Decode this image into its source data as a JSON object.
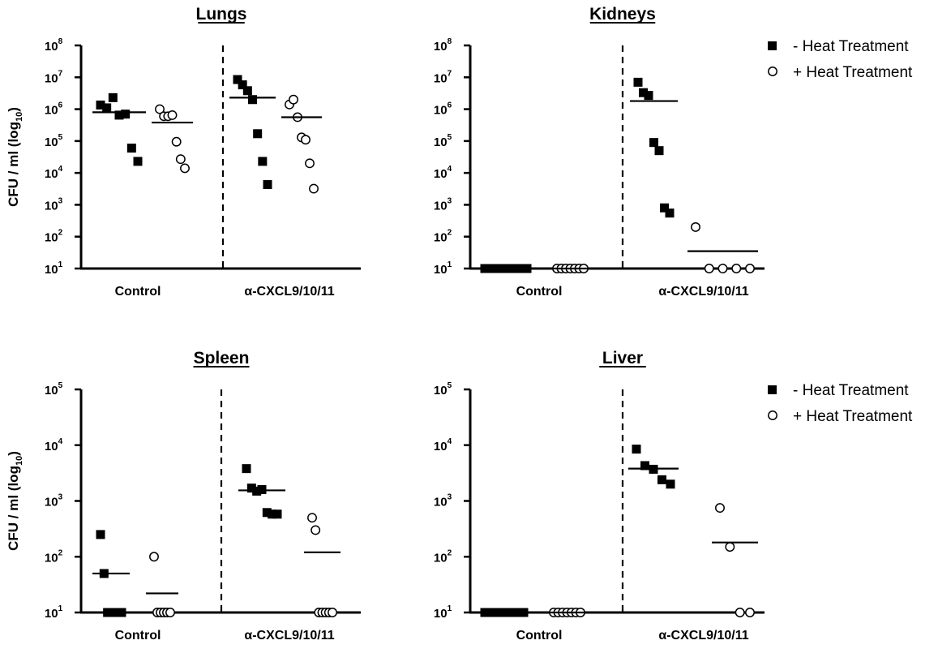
{
  "figure": {
    "ylabel": "CFU / ml (log",
    "ylabel_sub": "10",
    "ylabel_close": ")",
    "legend": {
      "filled": "-  Heat Treatment",
      "open": "+ Heat Treatment"
    }
  },
  "chart_data": [
    {
      "id": "lungs",
      "type": "scatter",
      "title": "Lungs",
      "yscale": "log",
      "ylim_exp": [
        1,
        8
      ],
      "tick_base": "10",
      "ytick_exps": [
        "1",
        "2",
        "3",
        "4",
        "5",
        "6",
        "7",
        "8"
      ],
      "categories": [
        "Control",
        "α-CXCL9/10/11"
      ],
      "legend": "none",
      "series": [
        {
          "marker": "filled-square",
          "category": 0,
          "values": [
            1350000,
            1100000,
            2300000,
            650000,
            700000,
            60000,
            23000
          ],
          "mean": 800000
        },
        {
          "marker": "open-circle",
          "category": 0,
          "values": [
            1000000,
            600000,
            600000,
            650000,
            95000,
            27000,
            14000
          ],
          "mean": 380000
        },
        {
          "marker": "filled-square",
          "category": 1,
          "values": [
            8500000,
            5800000,
            3800000,
            2000000,
            170000,
            23000,
            4300
          ],
          "mean": 2300000
        },
        {
          "marker": "open-circle",
          "category": 1,
          "values": [
            1400000,
            2000000,
            560000,
            130000,
            110000,
            20000,
            3200
          ],
          "mean": 560000
        }
      ]
    },
    {
      "id": "kidneys",
      "type": "scatter",
      "title": "Kidneys",
      "yscale": "log",
      "ylim_exp": [
        1,
        8
      ],
      "tick_base": "10",
      "ytick_exps": [
        "1",
        "2",
        "3",
        "4",
        "5",
        "6",
        "7",
        "8"
      ],
      "categories": [
        "Control",
        "α-CXCL9/10/11"
      ],
      "legend": "top-right",
      "series": [
        {
          "marker": "filled-square",
          "category": 0,
          "values": [
            10,
            10,
            10,
            10,
            10,
            10,
            10
          ],
          "mean": 10
        },
        {
          "marker": "open-circle",
          "category": 0,
          "values": [
            10,
            10,
            10,
            10,
            10,
            10,
            10
          ],
          "mean": 10
        },
        {
          "marker": "filled-square",
          "category": 1,
          "values": [
            7000000,
            3300000,
            2700000,
            90000,
            50000,
            800,
            550
          ],
          "mean": 1800000
        },
        {
          "marker": "open-circle",
          "category": 1,
          "values": [
            200,
            10,
            10,
            10,
            10
          ],
          "mean": 35
        }
      ]
    },
    {
      "id": "spleen",
      "type": "scatter",
      "title": "Spleen",
      "yscale": "log",
      "ylim_exp": [
        1,
        5
      ],
      "tick_base": "10",
      "ytick_exps": [
        "1",
        "2",
        "3",
        "4",
        "5"
      ],
      "categories": [
        "Control",
        "α-CXCL9/10/11"
      ],
      "legend": "none",
      "series": [
        {
          "marker": "filled-square",
          "category": 0,
          "values": [
            250,
            50,
            10,
            10,
            10,
            10,
            10
          ],
          "mean": 50
        },
        {
          "marker": "open-circle",
          "category": 0,
          "values": [
            100,
            10,
            10,
            10,
            10,
            10
          ],
          "mean": 22
        },
        {
          "marker": "filled-square",
          "category": 1,
          "values": [
            3800,
            1700,
            1500,
            1600,
            620,
            580,
            580
          ],
          "mean": 1550
        },
        {
          "marker": "open-circle",
          "category": 1,
          "values": [
            500,
            300,
            10,
            10,
            10,
            10,
            10
          ],
          "mean": 120
        }
      ]
    },
    {
      "id": "liver",
      "type": "scatter",
      "title": "Liver",
      "yscale": "log",
      "ylim_exp": [
        1,
        5
      ],
      "tick_base": "10",
      "ytick_exps": [
        "1",
        "2",
        "3",
        "4",
        "5"
      ],
      "categories": [
        "Control",
        "α-CXCL9/10/11"
      ],
      "legend": "top-right",
      "series": [
        {
          "marker": "filled-square",
          "category": 0,
          "values": [
            10,
            10,
            10,
            10,
            10,
            10,
            10
          ],
          "mean": 10
        },
        {
          "marker": "open-circle",
          "category": 0,
          "values": [
            10,
            10,
            10,
            10,
            10,
            10,
            10
          ],
          "mean": 10
        },
        {
          "marker": "filled-square",
          "category": 1,
          "values": [
            8500,
            4300,
            3700,
            2400,
            2000
          ],
          "mean": 3800
        },
        {
          "marker": "open-circle",
          "category": 1,
          "values": [
            750,
            150,
            10,
            10
          ],
          "mean": 180
        }
      ]
    }
  ]
}
